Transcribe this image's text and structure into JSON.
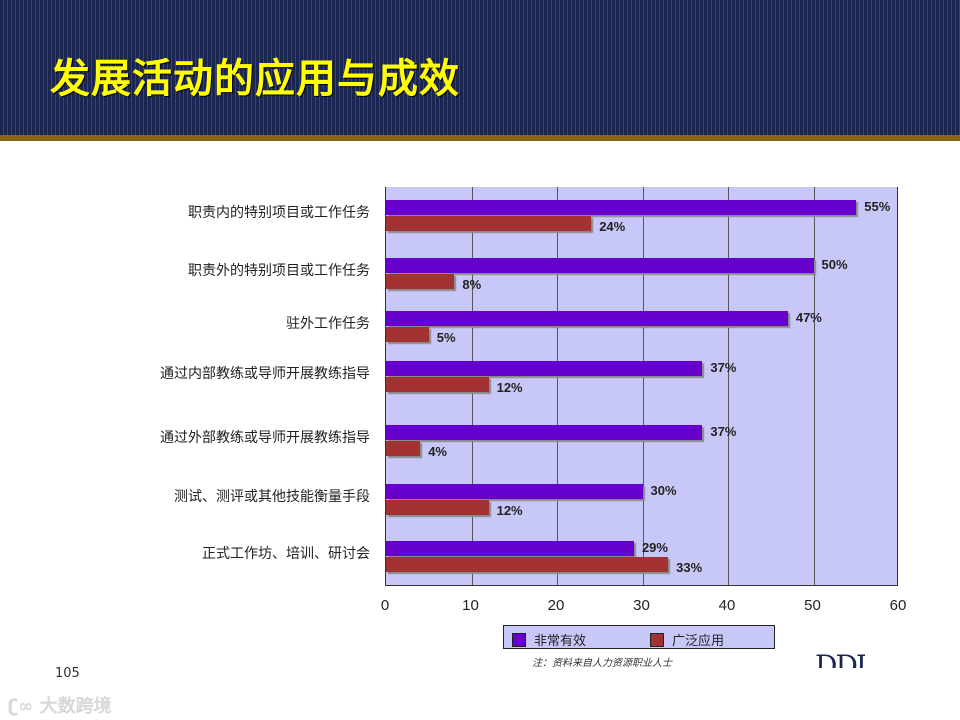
{
  "slide": {
    "title": "发展活动的应用与成效",
    "page_number": "105",
    "watermark": "大数跨境",
    "logo": "DDI",
    "note": "注：资料来自人力资源职业人士"
  },
  "colors": {
    "header_bg": "#1b2552",
    "title": "#ffff00",
    "plot_bg": "#c8c8f8",
    "series_a": "#6600cc",
    "series_b": "#a33232"
  },
  "legend": {
    "items": [
      {
        "label": "非常有效",
        "color": "#6600cc"
      },
      {
        "label": "广泛应用",
        "color": "#a33232"
      }
    ]
  },
  "chart_data": {
    "type": "bar",
    "orientation": "horizontal",
    "title": "发展活动的应用与成效",
    "xlabel": "",
    "ylabel": "",
    "xlim": [
      0,
      60
    ],
    "xticks": [
      0,
      10,
      20,
      30,
      40,
      50,
      60
    ],
    "grid": true,
    "legend_position": "bottom",
    "categories": [
      "职责内的特别项目或工作任务",
      "职责外的特别项目或工作任务",
      "驻外工作任务",
      "通过内部教练或导师开展教练指导",
      "通过外部教练或导师开展教练指导",
      "测试、测评或其他技能衡量手段",
      "正式工作坊、培训、研讨会"
    ],
    "series": [
      {
        "name": "非常有效",
        "values": [
          55,
          50,
          47,
          37,
          37,
          30,
          29
        ],
        "labels": [
          "55%",
          "50%",
          "47%",
          "37%",
          "37%",
          "30%",
          "29%"
        ]
      },
      {
        "name": "广泛应用",
        "values": [
          24,
          8,
          5,
          12,
          4,
          12,
          33
        ],
        "labels": [
          "24%",
          "8%",
          "5%",
          "12%",
          "4%",
          "12%",
          "33%"
        ]
      }
    ]
  }
}
